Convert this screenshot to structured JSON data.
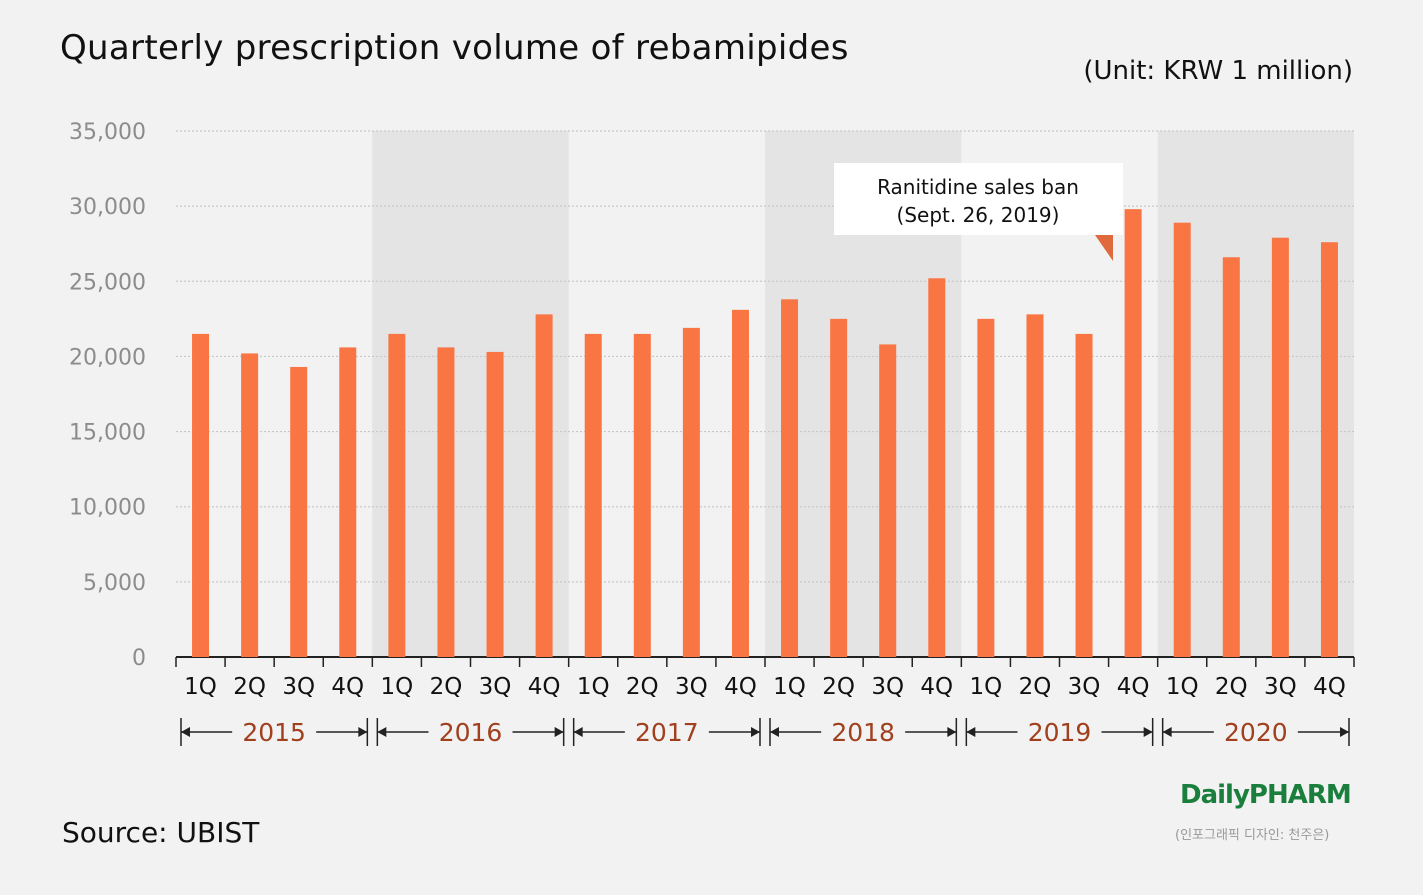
{
  "title": "Quarterly prescription volume of rebamipides",
  "unit": "(Unit: KRW 1 million)",
  "source": "Source: UBIST",
  "logo": "DailyPHARM",
  "credit": "(인포그래픽 디자인: 천주은)",
  "annotation": {
    "line1": "Ranitidine sales ban",
    "line2": "(Sept. 26, 2019)"
  },
  "colors": {
    "bar": "#f97544",
    "year_text": "#a0401e",
    "band": "#e4e4e4"
  },
  "chart_data": {
    "type": "bar",
    "title": "Quarterly prescription volume of rebamipides",
    "xlabel": "",
    "ylabel": "KRW 1 million",
    "ylim": [
      0,
      35000
    ],
    "yticks": [
      0,
      5000,
      10000,
      15000,
      20000,
      25000,
      30000,
      35000
    ],
    "ytick_labels": [
      "0",
      "5,000",
      "10,000",
      "15,000",
      "20,000",
      "25,000",
      "30,000",
      "35,000"
    ],
    "years": [
      "2015",
      "2016",
      "2017",
      "2018",
      "2019",
      "2020"
    ],
    "quarters": [
      "1Q",
      "2Q",
      "3Q",
      "4Q"
    ],
    "values": [
      21500,
      20200,
      19300,
      20600,
      21500,
      20600,
      20300,
      22800,
      21500,
      21500,
      21900,
      23100,
      23800,
      22500,
      20800,
      25200,
      22500,
      22800,
      21500,
      29800,
      28900,
      26600,
      27900,
      27600
    ]
  }
}
